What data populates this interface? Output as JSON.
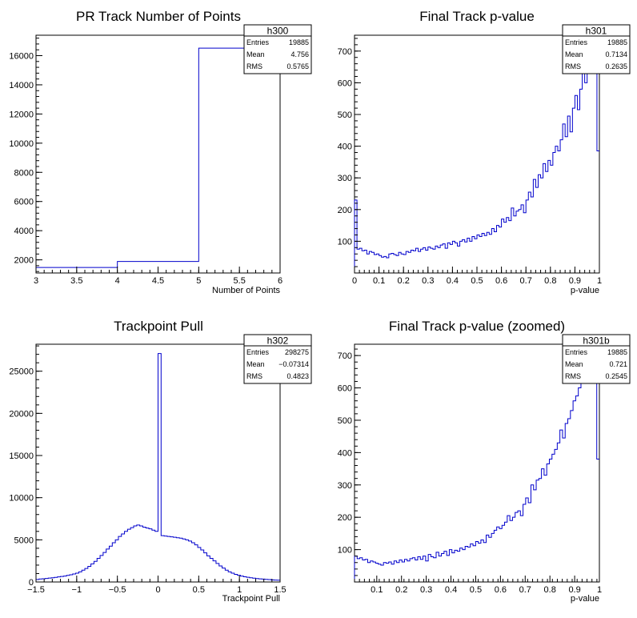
{
  "colors": {
    "histogram_line": "#0000cc",
    "frame": "#000000",
    "background": "#ffffff"
  },
  "chart_data": [
    {
      "type": "histogram",
      "id": "h300",
      "title": "PR Track Number of Points",
      "xlabel": "Number of Points",
      "ylabel": "",
      "xlim": [
        3,
        6
      ],
      "ylim": [
        1100,
        17400
      ],
      "xticks": [
        3,
        3.5,
        4,
        4.5,
        5,
        5.5,
        6
      ],
      "xtick_labels": [
        "3",
        "3.5",
        "4",
        "4.5",
        "5",
        "5.5",
        "6"
      ],
      "yticks": [
        2000,
        4000,
        6000,
        8000,
        10000,
        12000,
        14000,
        16000
      ],
      "ytick_labels": [
        "2000",
        "4000",
        "6000",
        "8000",
        "10000",
        "12000",
        "14000",
        "16000"
      ],
      "bins_edges": [
        3,
        4,
        5,
        6
      ],
      "values": [
        1480,
        1890,
        16515
      ],
      "stats": {
        "name": "h300",
        "rows": [
          {
            "label": "Entries",
            "value": "19885"
          },
          {
            "label": "Mean",
            "value": "4.756"
          },
          {
            "label": "RMS",
            "value": "0.5765"
          }
        ]
      }
    },
    {
      "type": "histogram",
      "id": "h301",
      "title": "Final Track p-value",
      "xlabel": "p-value",
      "ylabel": "",
      "xlim": [
        0,
        1
      ],
      "ylim": [
        0,
        750
      ],
      "xticks": [
        0,
        0.1,
        0.2,
        0.3,
        0.4,
        0.5,
        0.6,
        0.7,
        0.8,
        0.9,
        1
      ],
      "xtick_labels": [
        "0",
        "0.1",
        "0.2",
        "0.3",
        "0.4",
        "0.5",
        "0.6",
        "0.7",
        "0.8",
        "0.9",
        "1"
      ],
      "yticks": [
        100,
        200,
        300,
        400,
        500,
        600,
        700
      ],
      "ytick_labels": [
        "100",
        "200",
        "300",
        "400",
        "500",
        "600",
        "700"
      ],
      "bins_edges_range": [
        0,
        1
      ],
      "values": [
        230,
        75,
        78,
        70,
        72,
        60,
        68,
        65,
        58,
        60,
        55,
        50,
        52,
        48,
        60,
        62,
        58,
        55,
        65,
        60,
        58,
        68,
        65,
        72,
        70,
        78,
        68,
        75,
        80,
        72,
        82,
        78,
        75,
        85,
        80,
        88,
        92,
        78,
        95,
        90,
        100,
        95,
        85,
        100,
        105,
        98,
        110,
        100,
        115,
        108,
        120,
        115,
        125,
        118,
        128,
        122,
        140,
        130,
        150,
        145,
        170,
        160,
        175,
        165,
        205,
        180,
        195,
        200,
        215,
        190,
        230,
        255,
        240,
        295,
        270,
        310,
        300,
        345,
        320,
        355,
        340,
        380,
        400,
        385,
        420,
        470,
        430,
        495,
        445,
        520,
        560,
        515,
        580,
        640,
        600,
        700,
        710,
        760,
        760,
        385
      ],
      "stats": {
        "name": "h301",
        "rows": [
          {
            "label": "Entries",
            "value": "19885"
          },
          {
            "label": "Mean",
            "value": "0.7134"
          },
          {
            "label": "RMS",
            "value": "0.2635"
          }
        ]
      }
    },
    {
      "type": "histogram",
      "id": "h302",
      "title": "Trackpoint Pull",
      "xlabel": "Trackpoint Pull",
      "ylabel": "",
      "xlim": [
        -1.5,
        1.5
      ],
      "ylim": [
        0,
        28200
      ],
      "xticks": [
        -1.5,
        -1,
        -0.5,
        0,
        0.5,
        1,
        1.5
      ],
      "xtick_labels": [
        "−1.5",
        "−1",
        "−0.5",
        "0",
        "0.5",
        "1",
        "1.5"
      ],
      "yticks": [
        0,
        5000,
        10000,
        15000,
        20000,
        25000
      ],
      "ytick_labels": [
        "0",
        "5000",
        "10000",
        "15000",
        "20000",
        "25000"
      ],
      "bins_edges_range": [
        -1.5,
        1.5
      ],
      "values": [
        300,
        350,
        380,
        420,
        460,
        500,
        540,
        600,
        650,
        700,
        780,
        860,
        950,
        1050,
        1200,
        1400,
        1600,
        1850,
        2150,
        2450,
        2800,
        3150,
        3500,
        3900,
        4250,
        4650,
        5000,
        5400,
        5700,
        6000,
        6250,
        6450,
        6650,
        6750,
        6650,
        6500,
        6400,
        6300,
        6150,
        6000,
        27100,
        5500,
        5450,
        5400,
        5350,
        5300,
        5250,
        5200,
        5100,
        5000,
        4850,
        4650,
        4400,
        4100,
        3800,
        3450,
        3100,
        2800,
        2500,
        2200,
        1900,
        1650,
        1400,
        1200,
        1050,
        900,
        800,
        700,
        620,
        560,
        500,
        450,
        400,
        370,
        340,
        310,
        280,
        250,
        230,
        210
      ],
      "stats": {
        "name": "h302",
        "rows": [
          {
            "label": "Entries",
            "value": "298275"
          },
          {
            "label": "Mean",
            "value": "−0.07314"
          },
          {
            "label": "RMS",
            "value": "0.4823"
          }
        ]
      }
    },
    {
      "type": "histogram",
      "id": "h301b",
      "title": "Final Track p-value (zoomed)",
      "xlabel": "p-value",
      "ylabel": "",
      "xlim": [
        0.01,
        1
      ],
      "ylim": [
        0,
        735
      ],
      "xticks": [
        0.1,
        0.2,
        0.3,
        0.4,
        0.5,
        0.6,
        0.7,
        0.8,
        0.9,
        1
      ],
      "xtick_labels": [
        "0.1",
        "0.2",
        "0.3",
        "0.4",
        "0.5",
        "0.6",
        "0.7",
        "0.8",
        "0.9",
        "1"
      ],
      "yticks": [
        100,
        200,
        300,
        400,
        500,
        600,
        700
      ],
      "ytick_labels": [
        "100",
        "200",
        "300",
        "400",
        "500",
        "600",
        "700"
      ],
      "bins_edges_range": [
        0.01,
        1
      ],
      "values": [
        80,
        72,
        75,
        68,
        70,
        60,
        65,
        62,
        58,
        55,
        52,
        60,
        58,
        62,
        55,
        65,
        60,
        68,
        62,
        70,
        65,
        72,
        75,
        68,
        78,
        70,
        80,
        65,
        85,
        78,
        75,
        92,
        80,
        88,
        95,
        82,
        100,
        90,
        98,
        95,
        105,
        100,
        110,
        108,
        118,
        112,
        125,
        120,
        130,
        122,
        145,
        138,
        150,
        160,
        170,
        165,
        175,
        185,
        205,
        190,
        200,
        215,
        220,
        205,
        240,
        260,
        245,
        300,
        285,
        315,
        320,
        350,
        330,
        365,
        380,
        395,
        410,
        430,
        470,
        445,
        490,
        505,
        530,
        560,
        575,
        600,
        620,
        670,
        680,
        700,
        740,
        740,
        380
      ],
      "stats": {
        "name": "h301b",
        "rows": [
          {
            "label": "Entries",
            "value": "19885"
          },
          {
            "label": "Mean",
            "value": "0.721"
          },
          {
            "label": "RMS",
            "value": "0.2545"
          }
        ]
      }
    }
  ]
}
